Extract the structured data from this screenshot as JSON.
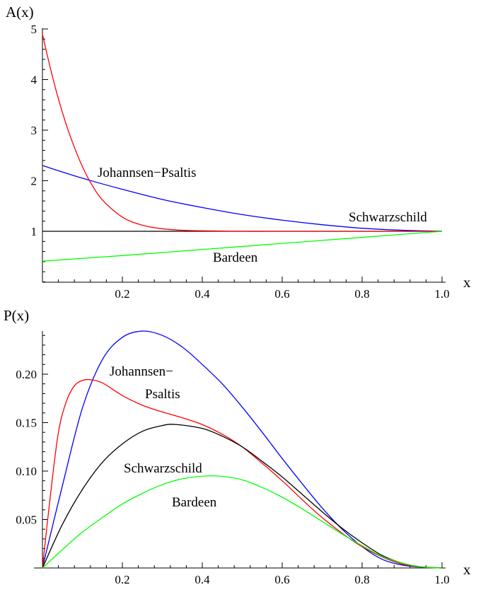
{
  "chart_data": [
    {
      "type": "line",
      "ylabel": "A(x)",
      "xlabel": "x",
      "xlim": [
        0,
        1.0
      ],
      "ylim": [
        0,
        5.2
      ],
      "xticks": [
        0.2,
        0.4,
        0.6,
        0.8,
        1.0
      ],
      "xtick_labels": [
        "0.2",
        "0.4",
        "0.6",
        "0.8",
        "1.0"
      ],
      "yticks": [
        1,
        2,
        3,
        4,
        5
      ],
      "ytick_labels": [
        "1",
        "2",
        "3",
        "4",
        "5"
      ],
      "series": [
        {
          "label_key": "schwarzschild",
          "color": "#000000",
          "x": [
            0,
            1.0
          ],
          "y": [
            1,
            1
          ]
        },
        {
          "label_key": "johannsen",
          "color": "#0000ff",
          "x": [
            0,
            0.1,
            0.2,
            0.3,
            0.4,
            0.5,
            0.6,
            0.7,
            0.8,
            0.9,
            1.0
          ],
          "y": [
            2.3,
            2.05,
            1.83,
            1.63,
            1.47,
            1.33,
            1.22,
            1.13,
            1.06,
            1.02,
            1.0
          ]
        },
        {
          "label_key": "red",
          "color": "#ff0000",
          "x": [
            0,
            0.02,
            0.04,
            0.06,
            0.08,
            0.1,
            0.12,
            0.15,
            0.2,
            0.25,
            0.3,
            0.35,
            0.4,
            0.5,
            0.6,
            0.8,
            1.0
          ],
          "y": [
            4.9,
            4.22,
            3.62,
            3.1,
            2.66,
            2.28,
            1.97,
            1.62,
            1.28,
            1.12,
            1.05,
            1.02,
            1.01,
            1.0,
            1.0,
            1.0,
            1.0
          ]
        },
        {
          "label_key": "bardeen",
          "color": "#00ff00",
          "x": [
            0,
            0.2,
            0.4,
            0.6,
            0.8,
            1.0
          ],
          "y": [
            0.41,
            0.52,
            0.64,
            0.76,
            0.88,
            1.0
          ]
        }
      ]
    },
    {
      "type": "line",
      "ylabel": "P(x)",
      "xlabel": "x",
      "xlim": [
        0,
        1.0
      ],
      "ylim": [
        0,
        0.25
      ],
      "xticks": [
        0.2,
        0.4,
        0.6,
        0.8,
        1.0
      ],
      "xtick_labels": [
        "0.2",
        "0.4",
        "0.6",
        "0.8",
        "1.0"
      ],
      "yticks": [
        0.05,
        0.1,
        0.15,
        0.2
      ],
      "ytick_labels": [
        "0.05",
        "0.10",
        "0.15",
        "0.20"
      ],
      "series": [
        {
          "label_key": "johannsen",
          "color": "#0000ff",
          "x": [
            0,
            0.05,
            0.1,
            0.15,
            0.2,
            0.25,
            0.3,
            0.35,
            0.4,
            0.45,
            0.5,
            0.55,
            0.6,
            0.65,
            0.7,
            0.75,
            0.8,
            0.85,
            0.9,
            0.95,
            1.0
          ],
          "y": [
            0,
            0.085,
            0.165,
            0.215,
            0.238,
            0.2445,
            0.24,
            0.228,
            0.21,
            0.19,
            0.166,
            0.14,
            0.113,
            0.087,
            0.062,
            0.04,
            0.022,
            0.009,
            0.003,
            0.0008,
            0
          ]
        },
        {
          "label_key": "red",
          "color": "#ff0000",
          "x": [
            0,
            0.02,
            0.04,
            0.06,
            0.08,
            0.1,
            0.12,
            0.15,
            0.2,
            0.25,
            0.3,
            0.35,
            0.4,
            0.45,
            0.5,
            0.55,
            0.6,
            0.7,
            0.8,
            0.9,
            1.0
          ],
          "y": [
            0,
            0.075,
            0.14,
            0.172,
            0.188,
            0.1935,
            0.1943,
            0.191,
            0.178,
            0.168,
            0.161,
            0.155,
            0.148,
            0.138,
            0.125,
            0.108,
            0.09,
            0.052,
            0.022,
            0.004,
            0
          ]
        },
        {
          "label_key": "schwarzschild",
          "color": "#000000",
          "x": [
            0,
            0.05,
            0.1,
            0.15,
            0.2,
            0.25,
            0.3,
            0.333,
            0.4,
            0.45,
            0.5,
            0.55,
            0.6,
            0.65,
            0.7,
            0.75,
            0.8,
            0.85,
            0.9,
            0.95,
            1.0
          ],
          "y": [
            0,
            0.045,
            0.081,
            0.109,
            0.128,
            0.141,
            0.147,
            0.1481,
            0.144,
            0.136,
            0.125,
            0.11,
            0.094,
            0.076,
            0.058,
            0.041,
            0.026,
            0.013,
            0.005,
            0.001,
            0
          ]
        },
        {
          "label_key": "bardeen",
          "color": "#00ff00",
          "x": [
            0,
            0.05,
            0.1,
            0.15,
            0.2,
            0.25,
            0.3,
            0.35,
            0.41,
            0.45,
            0.5,
            0.55,
            0.6,
            0.65,
            0.7,
            0.75,
            0.8,
            0.85,
            0.9,
            0.95,
            1.0
          ],
          "y": [
            0,
            0.019,
            0.037,
            0.052,
            0.066,
            0.077,
            0.086,
            0.092,
            0.095,
            0.0945,
            0.091,
            0.083,
            0.073,
            0.061,
            0.048,
            0.035,
            0.023,
            0.012,
            0.005,
            0.001,
            0
          ]
        }
      ]
    }
  ],
  "labels": {
    "top": {
      "johannsen": "Johannsen−Psaltis",
      "schwarzschild": "Schwarzschild",
      "bardeen": "Bardeen"
    },
    "bottom": {
      "johannsen_line1": "Johannsen−",
      "johannsen_line2": "Psaltis",
      "schwarzschild": "Schwarzschild",
      "bardeen": "Bardeen"
    }
  }
}
